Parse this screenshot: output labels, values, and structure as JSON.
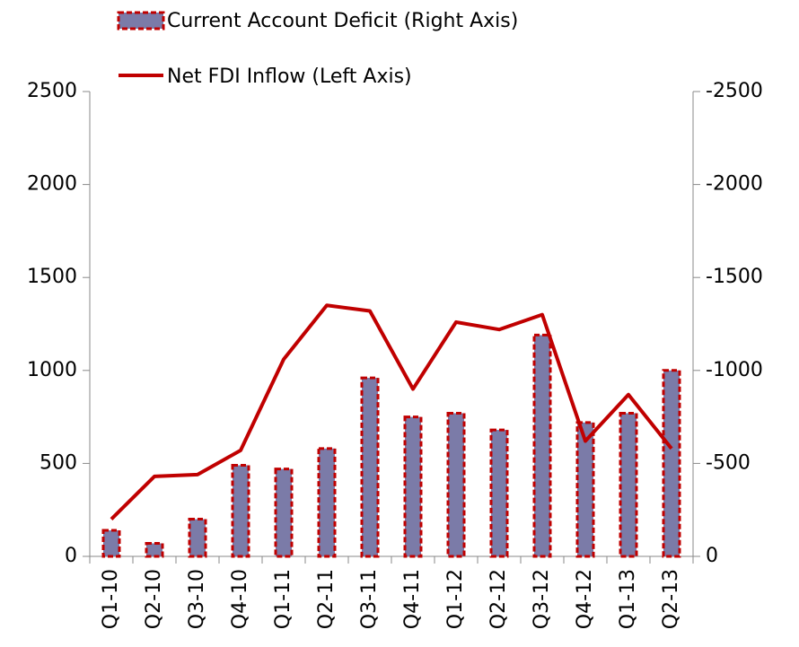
{
  "chart_data": {
    "type": "bar_line",
    "categories": [
      "Q1-10",
      "Q2-10",
      "Q3-10",
      "Q4-10",
      "Q1-11",
      "Q2-11",
      "Q3-11",
      "Q4-11",
      "Q1-12",
      "Q2-12",
      "Q3-12",
      "Q4-12",
      "Q1-13",
      "Q2-13"
    ],
    "series": [
      {
        "name": "Current Account Deficit (Right Axis)",
        "type": "bar",
        "axis": "y2",
        "color": "#7b7ba8",
        "edge_color": "#c00000",
        "values": [
          -140,
          -70,
          -200,
          -490,
          -470,
          -580,
          -960,
          -750,
          -770,
          -680,
          -1190,
          -720,
          -770,
          -1000
        ]
      },
      {
        "name": "Net FDI Inflow (Left Axis)",
        "type": "line",
        "color": "#c00000",
        "values": [
          200,
          430,
          440,
          570,
          1060,
          1350,
          1320,
          900,
          1260,
          1220,
          1300,
          620,
          870,
          580
        ]
      }
    ],
    "ylim": [
      0,
      2500
    ],
    "yticks": [
      0,
      500,
      1000,
      1500,
      2000,
      2500
    ],
    "y2lim": [
      0,
      -2500
    ],
    "y2ticks": [
      0,
      -500,
      -1000,
      -1500,
      -2000,
      -2500
    ]
  }
}
